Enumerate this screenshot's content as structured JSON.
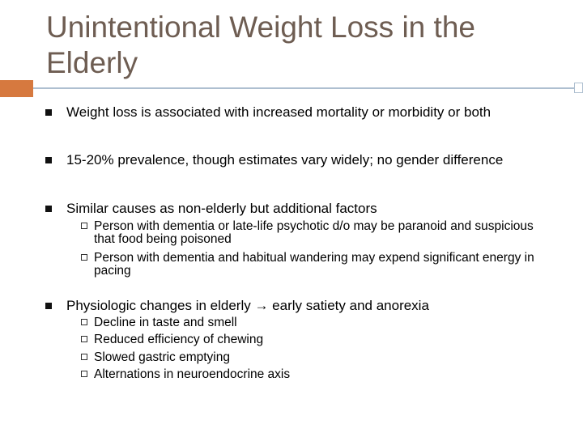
{
  "header": {
    "title": "Unintentional Weight Loss in the Elderly"
  },
  "bullets": [
    {
      "text": "Weight loss is associated with increased mortality or morbidity or both",
      "subs": []
    },
    {
      "text": "15-20% prevalence, though estimates vary widely; no gender difference",
      "subs": []
    },
    {
      "text": "Similar causes as non-elderly but additional factors",
      "subs": [
        "Person with dementia or late-life psychotic d/o may be paranoid and suspicious that food being poisoned",
        "Person with dementia and habitual wandering may expend significant energy in pacing"
      ]
    },
    {
      "text": "Physiologic changes in elderly → early satiety and anorexia",
      "subs": [
        "Decline in taste and smell",
        "Reduced efficiency of chewing",
        "Slowed gastric emptying",
        "Alternations in neuroendocrine axis"
      ]
    }
  ]
}
